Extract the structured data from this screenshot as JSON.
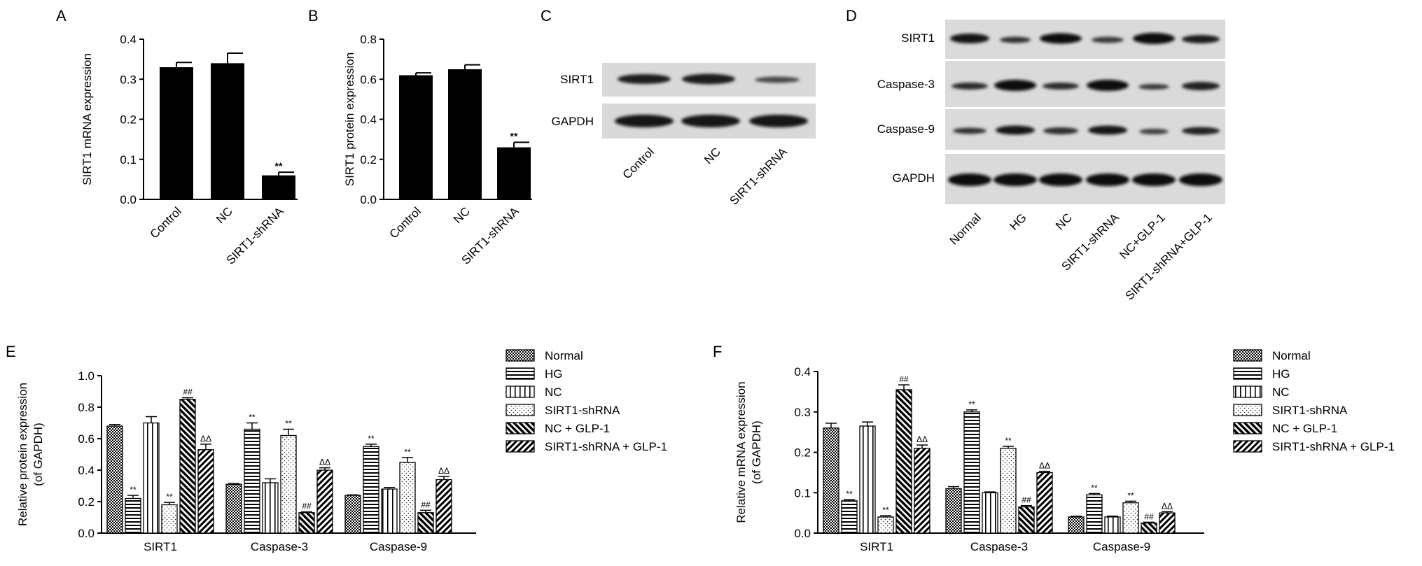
{
  "panels": {
    "A": {
      "letter": "A"
    },
    "B": {
      "letter": "B"
    },
    "C": {
      "letter": "C"
    },
    "D": {
      "letter": "D"
    },
    "E": {
      "letter": "E"
    },
    "F": {
      "letter": "F"
    }
  },
  "blots": {
    "C": {
      "rows": [
        "SIRT1",
        "GAPDH"
      ],
      "lanes": [
        "Control",
        "NC",
        "SIRT1-shRNA"
      ]
    },
    "D": {
      "rows": [
        "SIRT1",
        "Caspase-3",
        "Caspase-9",
        "GAPDH"
      ],
      "lanes": [
        "Normal",
        "HG",
        "NC",
        "SIRT1-shRNA",
        "NC+GLP-1",
        "SIRT1-shRNA+GLP-1"
      ]
    }
  },
  "chart_data": [
    {
      "id": "A",
      "type": "bar",
      "categories": [
        "Control",
        "NC",
        "SIRT1-shRNA"
      ],
      "values": [
        0.33,
        0.34,
        0.06
      ],
      "errors": [
        0.012,
        0.025,
        0.008
      ],
      "annotations": [
        "",
        "",
        "**"
      ],
      "ylabel": "SIRT1 mRNA expression",
      "ylim": [
        0,
        0.4
      ],
      "yticks": [
        "0.0",
        "0.1",
        "0.2",
        "0.3",
        "0.4"
      ]
    },
    {
      "id": "B",
      "type": "bar",
      "categories": [
        "Control",
        "NC",
        "SIRT1-shRNA"
      ],
      "values": [
        0.62,
        0.65,
        0.26
      ],
      "errors": [
        0.012,
        0.022,
        0.025
      ],
      "annotations": [
        "",
        "",
        "**"
      ],
      "ylabel": "SIRT1 protein expression",
      "ylim": [
        0,
        0.8
      ],
      "yticks": [
        "0.0",
        "0.2",
        "0.4",
        "0.6",
        "0.8"
      ]
    },
    {
      "id": "E",
      "type": "bar",
      "categories": [
        "SIRT1",
        "Caspase-3",
        "Caspase-9"
      ],
      "ylabel": "Relative protein expression (of GAPDH)",
      "ylabel_lines": [
        "Relative protein expression",
        "(of GAPDH)"
      ],
      "ylim": [
        0,
        1.0
      ],
      "yticks": [
        "0.0",
        "0.2",
        "0.4",
        "0.6",
        "0.8",
        "1.0"
      ],
      "legend_position": "right",
      "series": [
        {
          "name": "Normal",
          "values": [
            0.68,
            0.31,
            0.24
          ],
          "errors": [
            0.01,
            0.005,
            0.003
          ],
          "annotations": [
            "",
            "",
            ""
          ]
        },
        {
          "name": "HG",
          "values": [
            0.22,
            0.66,
            0.55
          ],
          "errors": [
            0.02,
            0.04,
            0.015
          ],
          "annotations": [
            "**",
            "**",
            "**"
          ]
        },
        {
          "name": "NC",
          "values": [
            0.7,
            0.32,
            0.28
          ],
          "errors": [
            0.04,
            0.025,
            0.01
          ],
          "annotations": [
            "",
            "",
            ""
          ]
        },
        {
          "name": "SIRT1-shRNA",
          "values": [
            0.18,
            0.62,
            0.45
          ],
          "errors": [
            0.015,
            0.04,
            0.03
          ],
          "annotations": [
            "**",
            "**",
            "**"
          ]
        },
        {
          "name": "NC + GLP-1",
          "values": [
            0.85,
            0.13,
            0.13
          ],
          "errors": [
            0.01,
            0.005,
            0.015
          ],
          "annotations": [
            "##",
            "##",
            "##"
          ]
        },
        {
          "name": "SIRT1-shRNA + GLP-1",
          "values": [
            0.53,
            0.4,
            0.34
          ],
          "errors": [
            0.035,
            0.015,
            0.02
          ],
          "annotations": [
            "ΔΔ",
            "ΔΔ",
            "ΔΔ"
          ]
        }
      ]
    },
    {
      "id": "F",
      "type": "bar",
      "categories": [
        "SIRT1",
        "Caspase-3",
        "Caspase-9"
      ],
      "ylabel": "Relative mRNA expression (of GAPDH)",
      "ylabel_lines": [
        "Relative mRNA expression",
        "(of GAPDH)"
      ],
      "ylim": [
        0,
        0.4
      ],
      "yticks": [
        "0.0",
        "0.1",
        "0.2",
        "0.3",
        "0.4"
      ],
      "legend_position": "right",
      "series": [
        {
          "name": "Normal",
          "values": [
            0.26,
            0.11,
            0.04
          ],
          "errors": [
            0.012,
            0.005,
            0.002
          ],
          "annotations": [
            "",
            "",
            ""
          ]
        },
        {
          "name": "HG",
          "values": [
            0.08,
            0.3,
            0.095
          ],
          "errors": [
            0.003,
            0.005,
            0.003
          ],
          "annotations": [
            "**",
            "**",
            "**"
          ]
        },
        {
          "name": "NC",
          "values": [
            0.265,
            0.1,
            0.04
          ],
          "errors": [
            0.01,
            0.002,
            0.002
          ],
          "annotations": [
            "",
            "",
            ""
          ]
        },
        {
          "name": "SIRT1-shRNA",
          "values": [
            0.04,
            0.21,
            0.075
          ],
          "errors": [
            0.003,
            0.005,
            0.004
          ],
          "annotations": [
            "**",
            "**",
            "**"
          ]
        },
        {
          "name": "NC + GLP-1",
          "values": [
            0.355,
            0.065,
            0.025
          ],
          "errors": [
            0.012,
            0.003,
            0.002
          ],
          "annotations": [
            "##",
            "##",
            "##"
          ]
        },
        {
          "name": "SIRT1-shRNA + GLP-1",
          "values": [
            0.21,
            0.15,
            0.05
          ],
          "errors": [
            0.008,
            0.003,
            0.003
          ],
          "annotations": [
            "ΔΔ",
            "ΔΔ",
            "ΔΔ"
          ]
        }
      ]
    }
  ]
}
